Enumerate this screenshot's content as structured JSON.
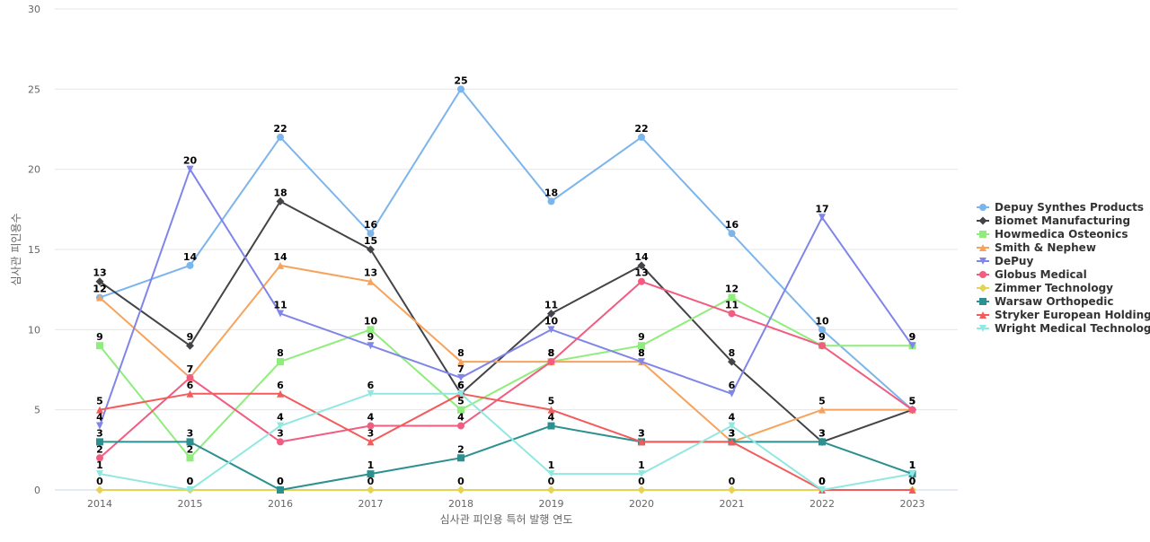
{
  "chart_data": {
    "type": "line",
    "xlabel": "심사관 피인용 특허 발행 연도",
    "ylabel": "심사관 피인용수",
    "categories": [
      "2014",
      "2015",
      "2016",
      "2017",
      "2018",
      "2019",
      "2020",
      "2021",
      "2022",
      "2023"
    ],
    "ylim": [
      0,
      30
    ],
    "yticks": [
      0,
      5,
      10,
      15,
      20,
      25,
      30
    ],
    "grid": true,
    "legend_position": "right",
    "series": [
      {
        "name": "Depuy Synthes Products",
        "color": "#7cb5ec",
        "marker": "circle",
        "values": [
          12,
          14,
          22,
          16,
          25,
          18,
          22,
          16,
          10,
          5
        ]
      },
      {
        "name": "Biomet Manufacturing",
        "color": "#434348",
        "marker": "diamond",
        "values": [
          13,
          9,
          18,
          15,
          6,
          11,
          14,
          8,
          3,
          5
        ]
      },
      {
        "name": "Howmedica Osteonics",
        "color": "#90ed7d",
        "marker": "square",
        "values": [
          9,
          2,
          8,
          10,
          5,
          8,
          9,
          12,
          9,
          9
        ]
      },
      {
        "name": "Smith & Nephew",
        "color": "#f7a35c",
        "marker": "triangle",
        "values": [
          12,
          7,
          14,
          13,
          8,
          8,
          8,
          3,
          5,
          5
        ]
      },
      {
        "name": "DePuy",
        "color": "#8085e9",
        "marker": "triangle-down",
        "values": [
          4,
          20,
          11,
          9,
          7,
          10,
          8,
          6,
          17,
          9
        ]
      },
      {
        "name": "Globus Medical",
        "color": "#f15c80",
        "marker": "circle",
        "values": [
          2,
          7,
          3,
          4,
          4,
          8,
          13,
          11,
          9,
          5
        ]
      },
      {
        "name": "Zimmer Technology",
        "color": "#e4d354",
        "marker": "diamond",
        "values": [
          0,
          0,
          0,
          0,
          0,
          0,
          0,
          0,
          0,
          0
        ]
      },
      {
        "name": "Warsaw Orthopedic",
        "color": "#2b908f",
        "marker": "square",
        "values": [
          3,
          3,
          0,
          1,
          2,
          4,
          3,
          3,
          3,
          1
        ]
      },
      {
        "name": "Stryker European Holdings",
        "color": "#f45b5b",
        "marker": "triangle",
        "values": [
          5,
          6,
          6,
          3,
          6,
          5,
          3,
          3,
          0,
          0
        ]
      },
      {
        "name": "Wright Medical Technology",
        "color": "#91e8e1",
        "marker": "triangle-down",
        "values": [
          1,
          0,
          4,
          6,
          6,
          1,
          1,
          4,
          0,
          1
        ]
      }
    ]
  }
}
